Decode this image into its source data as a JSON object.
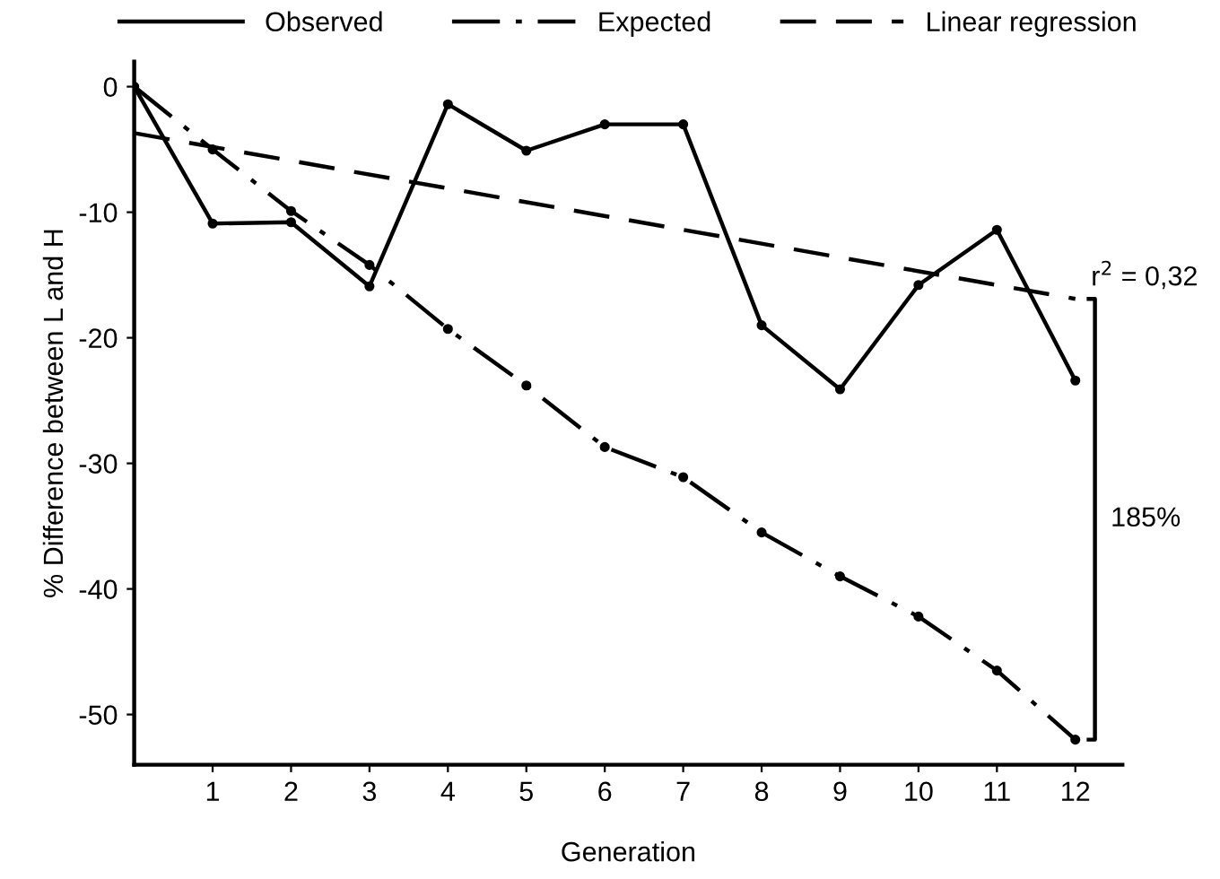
{
  "chart_data": {
    "type": "line",
    "xlabel": "Generation",
    "ylabel": "% Difference between L and H",
    "x": [
      0,
      1,
      2,
      3,
      4,
      5,
      6,
      7,
      8,
      9,
      10,
      11,
      12
    ],
    "series": [
      {
        "name": "Observed",
        "color": "#000000",
        "line_style": "solid",
        "marker": "circle",
        "values": [
          0,
          -10.9,
          -10.8,
          -15.9,
          -1.4,
          -5.1,
          -3.0,
          -3.0,
          -19.0,
          -24.1,
          -15.8,
          -11.4,
          -23.4
        ]
      },
      {
        "name": "Expected",
        "color": "#000000",
        "line_style": "dashdot",
        "marker": "circle",
        "values": [
          0,
          -5.0,
          -9.9,
          -14.2,
          -19.3,
          -23.8,
          -28.7,
          -31.1,
          -35.5,
          -39.0,
          -42.2,
          -46.5,
          -52.0
        ]
      },
      {
        "name": "Linear regression",
        "color": "#000000",
        "line_style": "dashed",
        "marker": "none",
        "x": [
          0,
          12
        ],
        "values": [
          -3.7,
          -16.9
        ]
      }
    ],
    "xlim": [
      0,
      12.6
    ],
    "ylim": [
      -54,
      2
    ],
    "xticks": [
      1,
      2,
      3,
      4,
      5,
      6,
      7,
      8,
      9,
      10,
      11,
      12
    ],
    "yticks": [
      0,
      -10,
      -20,
      -30,
      -40,
      -50
    ],
    "grid": false,
    "legend": "top",
    "annotations": [
      {
        "text": "r$^{2}$ = 0,32",
        "x": 12,
        "y": -16.9
      },
      "185%"
    ]
  }
}
